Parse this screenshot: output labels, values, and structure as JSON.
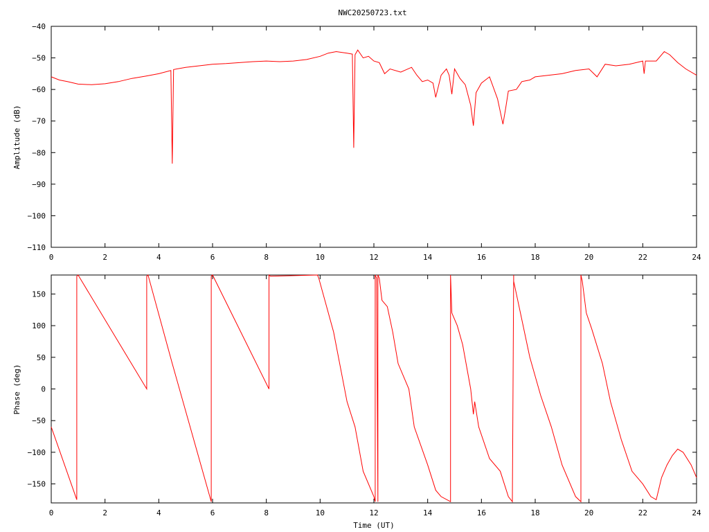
{
  "title": "NWC20250723.txt",
  "chart_data": [
    {
      "type": "line",
      "ylabel": "Amplitude (dB)",
      "xlabel": "",
      "xlim": [
        0,
        24
      ],
      "ylim": [
        -110,
        -40
      ],
      "xticks": [
        0,
        2,
        4,
        6,
        8,
        10,
        12,
        14,
        16,
        18,
        20,
        22,
        24
      ],
      "yticks": [
        -110,
        -100,
        -90,
        -80,
        -70,
        -60,
        -50,
        -40
      ],
      "grid": false,
      "color": "#ff0000",
      "series": [
        {
          "x": [
            0,
            0.3,
            0.6,
            1.0,
            1.5,
            2.0,
            2.5,
            3.0,
            3.5,
            4.0,
            4.45,
            4.5,
            4.55,
            5.0,
            5.5,
            6.0,
            6.5,
            7.0,
            7.5,
            8.0,
            8.5,
            9.0,
            9.5,
            10.0,
            10.3,
            10.6,
            11.0,
            11.2,
            11.25,
            11.3,
            11.4,
            11.6,
            11.8,
            12.0,
            12.2,
            12.4,
            12.6,
            13.0,
            13.4,
            13.6,
            13.8,
            14.0,
            14.2,
            14.3,
            14.5,
            14.7,
            14.8,
            14.9,
            15.0,
            15.2,
            15.4,
            15.6,
            15.7,
            15.8,
            16.0,
            16.3,
            16.6,
            16.8,
            16.9,
            17.0,
            17.3,
            17.5,
            17.8,
            18.0,
            18.5,
            19.0,
            19.5,
            20.0,
            20.3,
            20.6,
            21.0,
            21.5,
            22.0,
            22.05,
            22.1,
            22.5,
            22.8,
            23.0,
            23.3,
            23.6,
            24.0
          ],
          "y": [
            -56,
            -57,
            -57.5,
            -58.3,
            -58.5,
            -58.2,
            -57.5,
            -56.5,
            -55.8,
            -55.0,
            -54.0,
            -83.5,
            -53.7,
            -53.0,
            -52.5,
            -52.0,
            -51.8,
            -51.5,
            -51.2,
            -51.0,
            -51.2,
            -51.0,
            -50.5,
            -49.5,
            -48.5,
            -48.0,
            -48.5,
            -48.8,
            -78.5,
            -49.0,
            -47.5,
            -50.0,
            -49.5,
            -51.0,
            -51.5,
            -55.0,
            -53.5,
            -54.5,
            -53.0,
            -55.5,
            -57.5,
            -57.0,
            -58.0,
            -62.5,
            -55.5,
            -53.5,
            -55.5,
            -61.5,
            -53.5,
            -56.5,
            -58.5,
            -65.0,
            -71.5,
            -61.0,
            -58.0,
            -56.0,
            -63.0,
            -71.0,
            -66.0,
            -60.5,
            -60.0,
            -57.5,
            -57.0,
            -56.0,
            -55.5,
            -55.0,
            -54.0,
            -53.5,
            -56.0,
            -52.0,
            -52.5,
            -52.0,
            -51.0,
            -55.0,
            -51.0,
            -51.0,
            -48.0,
            -49.0,
            -51.5,
            -53.5,
            -55.5
          ]
        }
      ]
    },
    {
      "type": "line",
      "ylabel": "Phase (deg)",
      "xlabel": "Time (UT)",
      "xlim": [
        0,
        24
      ],
      "ylim": [
        -180,
        180
      ],
      "xticks": [
        0,
        2,
        4,
        6,
        8,
        10,
        12,
        14,
        16,
        18,
        20,
        22,
        24
      ],
      "yticks": [
        -150,
        -100,
        -50,
        0,
        50,
        100,
        150
      ],
      "grid": false,
      "color": "#ff0000",
      "series": [
        {
          "x": [
            0,
            0.95,
            0.95,
            1.0,
            3.55,
            3.55,
            3.6,
            4.5,
            5.95,
            5.95,
            6.0,
            8.1,
            8.1,
            8.15,
            9.9,
            9.9,
            9.95,
            10.5,
            11.0,
            11.3,
            11.6,
            12.0,
            12.05,
            12.05,
            12.1,
            12.15,
            12.15,
            12.2,
            12.3,
            12.5,
            12.7,
            12.9,
            13.3,
            13.5,
            14.0,
            14.3,
            14.5,
            14.85,
            14.85,
            14.9,
            15.1,
            15.3,
            15.6,
            15.7,
            15.75,
            15.9,
            16.3,
            16.7,
            17.0,
            17.15,
            17.2,
            17.2,
            17.25,
            17.5,
            17.8,
            18.2,
            18.6,
            19.0,
            19.5,
            19.7,
            19.7,
            19.75,
            19.9,
            20.1,
            20.5,
            20.8,
            21.2,
            21.6,
            22.0,
            22.3,
            22.5,
            22.7,
            22.9,
            23.1,
            23.3,
            23.5,
            23.8,
            24.0
          ],
          "y": [
            -60,
            -175,
            178,
            180,
            0,
            178,
            180,
            40,
            -178,
            178,
            180,
            0,
            180,
            178,
            180,
            180,
            175,
            90,
            -20,
            -60,
            -130,
            -170,
            -178,
            180,
            175,
            -178,
            180,
            175,
            140,
            130,
            90,
            40,
            0,
            -60,
            -120,
            -160,
            -170,
            -178,
            180,
            120,
            100,
            70,
            0,
            -40,
            -20,
            -60,
            -110,
            -130,
            -170,
            -178,
            180,
            170,
            160,
            110,
            50,
            -10,
            -60,
            -120,
            -170,
            -178,
            180,
            170,
            120,
            95,
            40,
            -20,
            -80,
            -130,
            -150,
            -170,
            -175,
            -140,
            -120,
            -105,
            -95,
            -100,
            -120,
            -140
          ]
        }
      ]
    }
  ]
}
